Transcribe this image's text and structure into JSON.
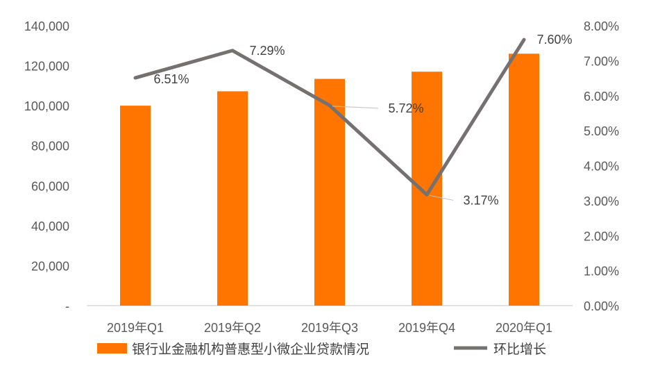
{
  "chart_data": {
    "type": "bar",
    "categories": [
      "2019年Q1",
      "2019年Q2",
      "2019年Q3",
      "2019年Q4",
      "2020年Q1"
    ],
    "series": [
      {
        "name": "银行业金融机构普惠型小微企业贷款情况",
        "type": "bar",
        "axis": "left",
        "color": "#FF7500",
        "values": [
          100000,
          107200,
          113400,
          117000,
          126000
        ]
      },
      {
        "name": "环比增长",
        "type": "line",
        "axis": "right",
        "color": "#767171",
        "values": [
          6.51,
          7.29,
          5.72,
          3.17,
          7.6
        ],
        "labels": [
          "6.51%",
          "7.29%",
          "5.72%",
          "3.17%",
          "7.60%"
        ]
      }
    ],
    "y_left": {
      "range": [
        0,
        140000
      ],
      "ticks": [
        "-",
        "20,000",
        "40,000",
        "60,000",
        "80,000",
        "100,000",
        "120,000",
        "140,000"
      ]
    },
    "y_right": {
      "range": [
        0,
        8
      ],
      "ticks": [
        "0.00%",
        "1.00%",
        "2.00%",
        "3.00%",
        "4.00%",
        "5.00%",
        "6.00%",
        "7.00%",
        "8.00%"
      ]
    },
    "grid": false,
    "legend_position": "bottom"
  }
}
